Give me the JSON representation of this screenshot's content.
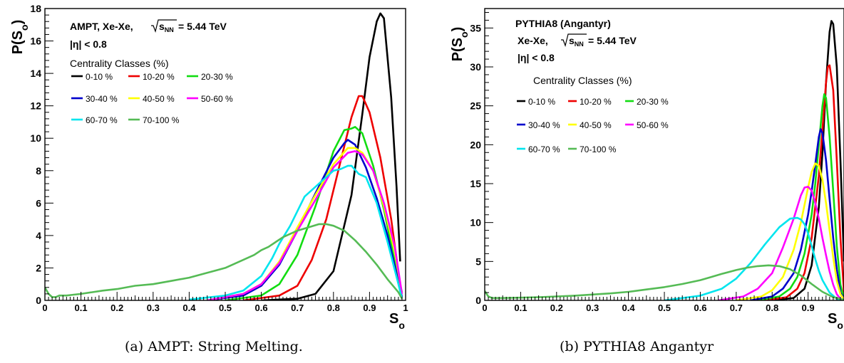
{
  "chart_data": [
    {
      "type": "line",
      "panel": "a",
      "caption": "(a) AMPT: String Melting.",
      "ylabel": "P(S_o)",
      "xlabel": "S_o",
      "xlim": [
        0,
        1
      ],
      "ylim": [
        0,
        18
      ],
      "xticks": [
        "0",
        "0.1",
        "0.2",
        "0.3",
        "0.4",
        "0.5",
        "0.6",
        "0.7",
        "0.8",
        "0.9",
        "1"
      ],
      "yticks": [
        "0",
        "2",
        "4",
        "6",
        "8",
        "10",
        "12",
        "14",
        "16",
        "18"
      ],
      "ytick_values": [
        0,
        2,
        4,
        6,
        8,
        10,
        12,
        14,
        16,
        18
      ],
      "legend_title": "Centrality Classes (%)",
      "legend_position": "top-left",
      "annotations": [
        "AMPT, Xe-Xe,",
        "= 5.44 TeV",
        "|η| < 0.8"
      ],
      "series": [
        {
          "name": "0-10 %",
          "color": "#000000",
          "x": [
            0.6,
            0.7,
            0.75,
            0.8,
            0.85,
            0.88,
            0.9,
            0.92,
            0.93,
            0.94,
            0.96,
            0.975,
            0.985
          ],
          "y": [
            0,
            0.1,
            0.4,
            1.8,
            6.5,
            11.5,
            15.0,
            17.2,
            17.7,
            17.4,
            12.5,
            7.0,
            2.4
          ]
        },
        {
          "name": "10-20 %",
          "color": "#ee0000",
          "x": [
            0.55,
            0.65,
            0.7,
            0.74,
            0.78,
            0.82,
            0.85,
            0.87,
            0.88,
            0.9,
            0.93,
            0.96,
            0.985
          ],
          "y": [
            0,
            0.3,
            0.9,
            2.5,
            5.0,
            8.6,
            11.3,
            12.6,
            12.6,
            11.6,
            8.8,
            5.0,
            0.9
          ]
        },
        {
          "name": "20-30 %",
          "color": "#11dd11",
          "x": [
            0.5,
            0.6,
            0.65,
            0.7,
            0.75,
            0.8,
            0.83,
            0.85,
            0.86,
            0.88,
            0.91,
            0.94,
            0.97,
            0.99
          ],
          "y": [
            0,
            0.3,
            1.0,
            2.8,
            5.8,
            9.2,
            10.5,
            10.6,
            10.7,
            10.3,
            8.3,
            5.6,
            2.4,
            0.5
          ]
        },
        {
          "name": "30-40 %",
          "color": "#0000cc",
          "x": [
            0.45,
            0.55,
            0.6,
            0.65,
            0.7,
            0.75,
            0.8,
            0.83,
            0.84,
            0.86,
            0.89,
            0.92,
            0.95,
            0.98,
            0.99
          ],
          "y": [
            0,
            0.3,
            0.9,
            2.2,
            4.3,
            6.6,
            8.8,
            9.7,
            9.9,
            9.6,
            8.2,
            6.3,
            4.0,
            1.2,
            0.2
          ]
        },
        {
          "name": "40-50 %",
          "color": "#ffff00",
          "x": [
            0.45,
            0.55,
            0.6,
            0.65,
            0.7,
            0.75,
            0.8,
            0.84,
            0.86,
            0.88,
            0.91,
            0.94,
            0.97,
            0.99
          ],
          "y": [
            0,
            0.4,
            1.0,
            2.4,
            4.5,
            6.5,
            8.4,
            9.4,
            9.4,
            9.1,
            8.0,
            5.8,
            3.0,
            0.4
          ]
        },
        {
          "name": "50-60 %",
          "color": "#ff00ff",
          "x": [
            0.45,
            0.55,
            0.6,
            0.65,
            0.7,
            0.75,
            0.8,
            0.84,
            0.86,
            0.88,
            0.91,
            0.94,
            0.97,
            0.99
          ],
          "y": [
            0,
            0.4,
            1.0,
            2.3,
            4.3,
            6.2,
            8.2,
            9.1,
            9.2,
            9.0,
            8.0,
            6.0,
            3.3,
            0.4
          ]
        },
        {
          "name": "60-70 %",
          "color": "#00e5ee",
          "x": [
            0.4,
            0.5,
            0.55,
            0.6,
            0.63,
            0.65,
            0.68,
            0.72,
            0.77,
            0.8,
            0.82,
            0.84,
            0.85,
            0.87,
            0.89,
            0.92,
            0.95,
            0.98,
            0.99
          ],
          "y": [
            0.05,
            0.3,
            0.6,
            1.5,
            2.6,
            3.5,
            4.6,
            6.4,
            7.4,
            8.0,
            8.1,
            8.3,
            8.3,
            7.8,
            7.6,
            6.0,
            3.6,
            1.0,
            0.1
          ]
        },
        {
          "name": "70-100 %",
          "color": "#55bb55",
          "x": [
            0.0,
            0.01,
            0.02,
            0.03,
            0.04,
            0.06,
            0.08,
            0.1,
            0.13,
            0.16,
            0.2,
            0.25,
            0.3,
            0.35,
            0.4,
            0.45,
            0.5,
            0.55,
            0.58,
            0.6,
            0.62,
            0.64,
            0.66,
            0.68,
            0.7,
            0.73,
            0.76,
            0.78,
            0.8,
            0.83,
            0.86,
            0.89,
            0.92,
            0.95,
            0.98,
            0.99
          ],
          "y": [
            0.8,
            0.4,
            0.2,
            0.2,
            0.3,
            0.3,
            0.35,
            0.4,
            0.5,
            0.6,
            0.7,
            0.9,
            1.0,
            1.2,
            1.4,
            1.7,
            2.0,
            2.5,
            2.8,
            3.1,
            3.3,
            3.6,
            3.9,
            4.1,
            4.3,
            4.5,
            4.7,
            4.7,
            4.6,
            4.3,
            3.7,
            3.0,
            2.2,
            1.3,
            0.5,
            0.1
          ]
        }
      ]
    },
    {
      "type": "line",
      "panel": "b",
      "caption": "(b) PYTHIA8 Angantyr",
      "ylabel": "P(S_o)",
      "xlabel": "S_o",
      "xlim": [
        0,
        1
      ],
      "ylim": [
        0,
        37.5
      ],
      "xticks": [
        "0",
        "0.1",
        "0.2",
        "0.3",
        "0.4",
        "0.5",
        "0.6",
        "0.7",
        "0.8",
        "0.9"
      ],
      "yticks": [
        "0",
        "5",
        "10",
        "15",
        "20",
        "25",
        "30",
        "35"
      ],
      "ytick_values": [
        0,
        5,
        10,
        15,
        20,
        25,
        30,
        35
      ],
      "legend_title": "Centrality Classes (%)",
      "legend_position": "top-left",
      "annotations": [
        "PYTHIA8 (Angantyr)",
        "Xe-Xe,",
        "= 5.44 TeV",
        "|η| < 0.8"
      ],
      "series": [
        {
          "name": "0-10 %",
          "color": "#000000",
          "x": [
            0.8,
            0.86,
            0.89,
            0.91,
            0.93,
            0.94,
            0.95,
            0.96,
            0.965,
            0.97,
            0.98,
            0.99,
            1.0
          ],
          "y": [
            0,
            0.3,
            1.5,
            4.5,
            12.0,
            19.0,
            28.0,
            34.5,
            35.9,
            35.5,
            30.0,
            18.0,
            5.0
          ]
        },
        {
          "name": "10-20 %",
          "color": "#ee0000",
          "x": [
            0.78,
            0.84,
            0.87,
            0.89,
            0.91,
            0.93,
            0.94,
            0.95,
            0.955,
            0.96,
            0.97,
            0.98,
            0.99,
            1.0
          ],
          "y": [
            0,
            0.4,
            1.5,
            3.5,
            8.0,
            16.0,
            22.0,
            28.0,
            30.0,
            30.2,
            27.0,
            18.0,
            8.0,
            1.0
          ]
        },
        {
          "name": "20-30 %",
          "color": "#11dd11",
          "x": [
            0.76,
            0.82,
            0.85,
            0.87,
            0.89,
            0.91,
            0.92,
            0.93,
            0.94,
            0.945,
            0.95,
            0.96,
            0.97,
            0.98,
            0.99,
            1.0
          ],
          "y": [
            0,
            0.5,
            1.5,
            3.0,
            6.0,
            11.0,
            15.0,
            20.0,
            25.0,
            26.5,
            26.0,
            21.0,
            14.0,
            7.0,
            2.0,
            0.2
          ]
        },
        {
          "name": "30-40 %",
          "color": "#0000cc",
          "x": [
            0.74,
            0.8,
            0.83,
            0.86,
            0.88,
            0.9,
            0.91,
            0.92,
            0.93,
            0.935,
            0.94,
            0.95,
            0.96,
            0.97,
            0.98,
            0.99,
            1.0
          ],
          "y": [
            0,
            0.5,
            1.5,
            3.5,
            6.5,
            11.0,
            14.0,
            17.5,
            21.0,
            22.0,
            21.5,
            18.0,
            13.0,
            8.0,
            4.0,
            1.0,
            0.2
          ]
        },
        {
          "name": "40-50 %",
          "color": "#ffff00",
          "x": [
            0.7,
            0.77,
            0.8,
            0.83,
            0.86,
            0.88,
            0.9,
            0.91,
            0.92,
            0.93,
            0.94,
            0.95,
            0.96,
            0.97,
            0.98,
            0.99,
            1.0
          ],
          "y": [
            0,
            0.5,
            1.3,
            3.0,
            6.5,
            10.0,
            14.5,
            16.5,
            17.6,
            17.3,
            15.5,
            12.5,
            9.0,
            5.5,
            2.5,
            0.8,
            0.1
          ]
        },
        {
          "name": "50-60 %",
          "color": "#ff00ff",
          "x": [
            0.65,
            0.72,
            0.76,
            0.8,
            0.83,
            0.86,
            0.88,
            0.89,
            0.9,
            0.91,
            0.92,
            0.93,
            0.94,
            0.95,
            0.96,
            0.97,
            0.98,
            0.99,
            1.0
          ],
          "y": [
            0,
            0.5,
            1.5,
            3.5,
            6.8,
            10.5,
            13.5,
            14.5,
            14.6,
            14.1,
            12.5,
            10.5,
            8.0,
            5.8,
            3.7,
            2.0,
            0.8,
            0.2,
            0
          ]
        },
        {
          "name": "60-70 %",
          "color": "#00e5ee",
          "x": [
            0.5,
            0.6,
            0.66,
            0.7,
            0.74,
            0.78,
            0.82,
            0.85,
            0.87,
            0.88,
            0.89,
            0.9,
            0.91,
            0.92,
            0.93,
            0.94,
            0.96,
            0.98,
            1.0
          ],
          "y": [
            0,
            0.6,
            1.5,
            2.8,
            4.8,
            7.2,
            9.4,
            10.5,
            10.6,
            10.4,
            9.8,
            8.6,
            7.0,
            5.3,
            3.8,
            2.6,
            1.0,
            0.2,
            0
          ]
        },
        {
          "name": "70-100 %",
          "color": "#55bb55",
          "x": [
            0.0,
            0.01,
            0.02,
            0.03,
            0.05,
            0.1,
            0.15,
            0.2,
            0.25,
            0.3,
            0.35,
            0.4,
            0.45,
            0.5,
            0.55,
            0.6,
            0.63,
            0.66,
            0.7,
            0.73,
            0.76,
            0.79,
            0.82,
            0.85,
            0.88,
            0.91,
            0.94,
            0.97,
            1.0
          ],
          "y": [
            1.2,
            0.5,
            0.3,
            0.3,
            0.3,
            0.35,
            0.4,
            0.5,
            0.6,
            0.75,
            0.9,
            1.1,
            1.4,
            1.7,
            2.1,
            2.6,
            3.0,
            3.4,
            3.9,
            4.2,
            4.4,
            4.5,
            4.4,
            4.0,
            3.2,
            2.1,
            1.1,
            0.4,
            0.1
          ]
        }
      ]
    }
  ]
}
